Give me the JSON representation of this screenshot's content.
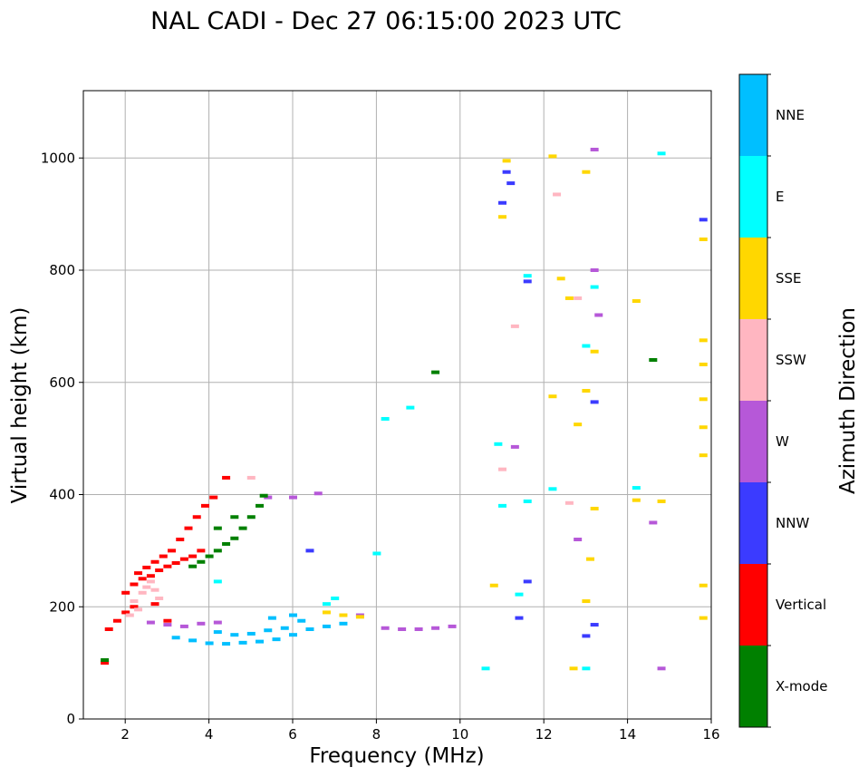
{
  "chart_data": {
    "type": "scatter",
    "title": "NAL CADI - Dec 27 06:15:00 2023 UTC",
    "xlabel": "Frequency (MHz)",
    "ylabel": "Virtual height (km)",
    "xlim": [
      1,
      16
    ],
    "ylim": [
      0,
      1120
    ],
    "xticks": [
      2,
      4,
      6,
      8,
      10,
      12,
      14,
      16
    ],
    "yticks": [
      0,
      200,
      400,
      600,
      800,
      1000
    ],
    "grid": true,
    "colorbar": {
      "label": "Azimuth Direction",
      "categories": [
        {
          "name": "X-mode",
          "color": "#008000"
        },
        {
          "name": "Vertical",
          "color": "#ff0000"
        },
        {
          "name": "NNW",
          "color": "#3b3bff"
        },
        {
          "name": "W",
          "color": "#b658d8"
        },
        {
          "name": "SSW",
          "color": "#ffb6c1"
        },
        {
          "name": "SSE",
          "color": "#ffd700"
        },
        {
          "name": "E",
          "color": "#00ffff"
        },
        {
          "name": "NNE",
          "color": "#00bfff"
        }
      ]
    },
    "traces": [
      {
        "category": "NNE",
        "points": [
          [
            3.2,
            145
          ],
          [
            3.6,
            140
          ],
          [
            4.0,
            135
          ],
          [
            4.4,
            134
          ],
          [
            4.8,
            136
          ],
          [
            5.2,
            138
          ],
          [
            5.6,
            142
          ],
          [
            6.0,
            150
          ],
          [
            6.4,
            160
          ],
          [
            6.8,
            165
          ],
          [
            7.2,
            170
          ],
          [
            4.2,
            155
          ],
          [
            4.6,
            150
          ],
          [
            5.0,
            152
          ],
          [
            5.4,
            158
          ],
          [
            5.8,
            162
          ],
          [
            6.2,
            175
          ],
          [
            5.5,
            180
          ],
          [
            6.0,
            185
          ]
        ]
      },
      {
        "category": "Vertical",
        "points": [
          [
            1.6,
            160
          ],
          [
            1.8,
            175
          ],
          [
            2.0,
            190
          ],
          [
            2.2,
            200
          ],
          [
            2.0,
            225
          ],
          [
            2.2,
            240
          ],
          [
            2.4,
            250
          ],
          [
            2.6,
            255
          ],
          [
            2.8,
            265
          ],
          [
            3.0,
            272
          ],
          [
            3.2,
            278
          ],
          [
            3.4,
            285
          ],
          [
            3.6,
            290
          ],
          [
            3.8,
            300
          ],
          [
            2.3,
            260
          ],
          [
            2.5,
            270
          ],
          [
            2.7,
            280
          ],
          [
            2.9,
            290
          ],
          [
            3.1,
            300
          ],
          [
            3.3,
            320
          ],
          [
            3.5,
            340
          ],
          [
            3.7,
            360
          ],
          [
            3.9,
            380
          ],
          [
            4.1,
            395
          ],
          [
            4.4,
            430
          ],
          [
            1.5,
            100
          ],
          [
            2.7,
            205
          ],
          [
            3.0,
            175
          ]
        ]
      },
      {
        "category": "SSW",
        "points": [
          [
            2.2,
            210
          ],
          [
            2.4,
            225
          ],
          [
            2.5,
            235
          ],
          [
            2.6,
            245
          ],
          [
            2.7,
            230
          ],
          [
            2.3,
            195
          ],
          [
            2.1,
            185
          ],
          [
            2.8,
            215
          ],
          [
            5.0,
            430
          ],
          [
            11.0,
            445
          ],
          [
            11.3,
            700
          ],
          [
            12.3,
            935
          ],
          [
            12.8,
            750
          ],
          [
            12.6,
            385
          ]
        ]
      },
      {
        "category": "W",
        "points": [
          [
            2.6,
            172
          ],
          [
            3.0,
            168
          ],
          [
            3.4,
            165
          ],
          [
            3.8,
            170
          ],
          [
            4.2,
            172
          ],
          [
            5.4,
            395
          ],
          [
            6.0,
            395
          ],
          [
            6.6,
            402
          ],
          [
            7.6,
            185
          ],
          [
            8.2,
            162
          ],
          [
            8.6,
            160
          ],
          [
            9.0,
            160
          ],
          [
            9.4,
            162
          ],
          [
            9.8,
            165
          ],
          [
            14.8,
            90
          ],
          [
            14.6,
            350
          ],
          [
            13.2,
            800
          ],
          [
            13.3,
            720
          ],
          [
            13.2,
            1015
          ],
          [
            11.3,
            485
          ],
          [
            12.8,
            320
          ]
        ]
      },
      {
        "category": "X-mode",
        "points": [
          [
            3.6,
            272
          ],
          [
            3.8,
            280
          ],
          [
            4.0,
            290
          ],
          [
            4.2,
            300
          ],
          [
            4.4,
            312
          ],
          [
            4.6,
            322
          ],
          [
            4.8,
            340
          ],
          [
            5.0,
            360
          ],
          [
            5.2,
            380
          ],
          [
            5.3,
            398
          ],
          [
            4.6,
            360
          ],
          [
            4.2,
            340
          ],
          [
            1.5,
            105
          ],
          [
            9.4,
            618
          ],
          [
            14.6,
            640
          ]
        ]
      },
      {
        "category": "NNW",
        "points": [
          [
            11.0,
            920
          ],
          [
            11.1,
            975
          ],
          [
            11.2,
            955
          ],
          [
            11.6,
            780
          ],
          [
            11.4,
            180
          ],
          [
            13.0,
            148
          ],
          [
            13.2,
            168
          ],
          [
            13.2,
            565
          ],
          [
            15.8,
            890
          ],
          [
            11.6,
            245
          ],
          [
            6.4,
            300
          ]
        ]
      },
      {
        "category": "SSE",
        "points": [
          [
            7.2,
            185
          ],
          [
            7.6,
            182
          ],
          [
            6.8,
            190
          ],
          [
            11.0,
            895
          ],
          [
            11.1,
            995
          ],
          [
            12.2,
            1003
          ],
          [
            12.4,
            785
          ],
          [
            12.6,
            750
          ],
          [
            13.0,
            975
          ],
          [
            13.0,
            585
          ],
          [
            13.2,
            655
          ],
          [
            13.2,
            375
          ],
          [
            13.1,
            285
          ],
          [
            13.0,
            210
          ],
          [
            12.7,
            90
          ],
          [
            12.8,
            525
          ],
          [
            14.2,
            390
          ],
          [
            14.2,
            745
          ],
          [
            14.8,
            388
          ],
          [
            15.8,
            855
          ],
          [
            15.8,
            675
          ],
          [
            15.8,
            632
          ],
          [
            15.8,
            570
          ],
          [
            15.8,
            520
          ],
          [
            15.8,
            470
          ],
          [
            15.8,
            238
          ],
          [
            15.8,
            180
          ],
          [
            12.2,
            575
          ],
          [
            10.8,
            238
          ]
        ]
      },
      {
        "category": "E",
        "points": [
          [
            4.2,
            245
          ],
          [
            7.0,
            215
          ],
          [
            8.2,
            535
          ],
          [
            8.8,
            555
          ],
          [
            10.6,
            90
          ],
          [
            10.9,
            490
          ],
          [
            11.0,
            380
          ],
          [
            11.6,
            790
          ],
          [
            11.6,
            388
          ],
          [
            11.4,
            222
          ],
          [
            12.2,
            410
          ],
          [
            13.0,
            665
          ],
          [
            13.2,
            770
          ],
          [
            13.0,
            90
          ],
          [
            14.2,
            412
          ],
          [
            14.8,
            1008
          ],
          [
            8.0,
            295
          ],
          [
            6.8,
            205
          ]
        ]
      }
    ]
  }
}
